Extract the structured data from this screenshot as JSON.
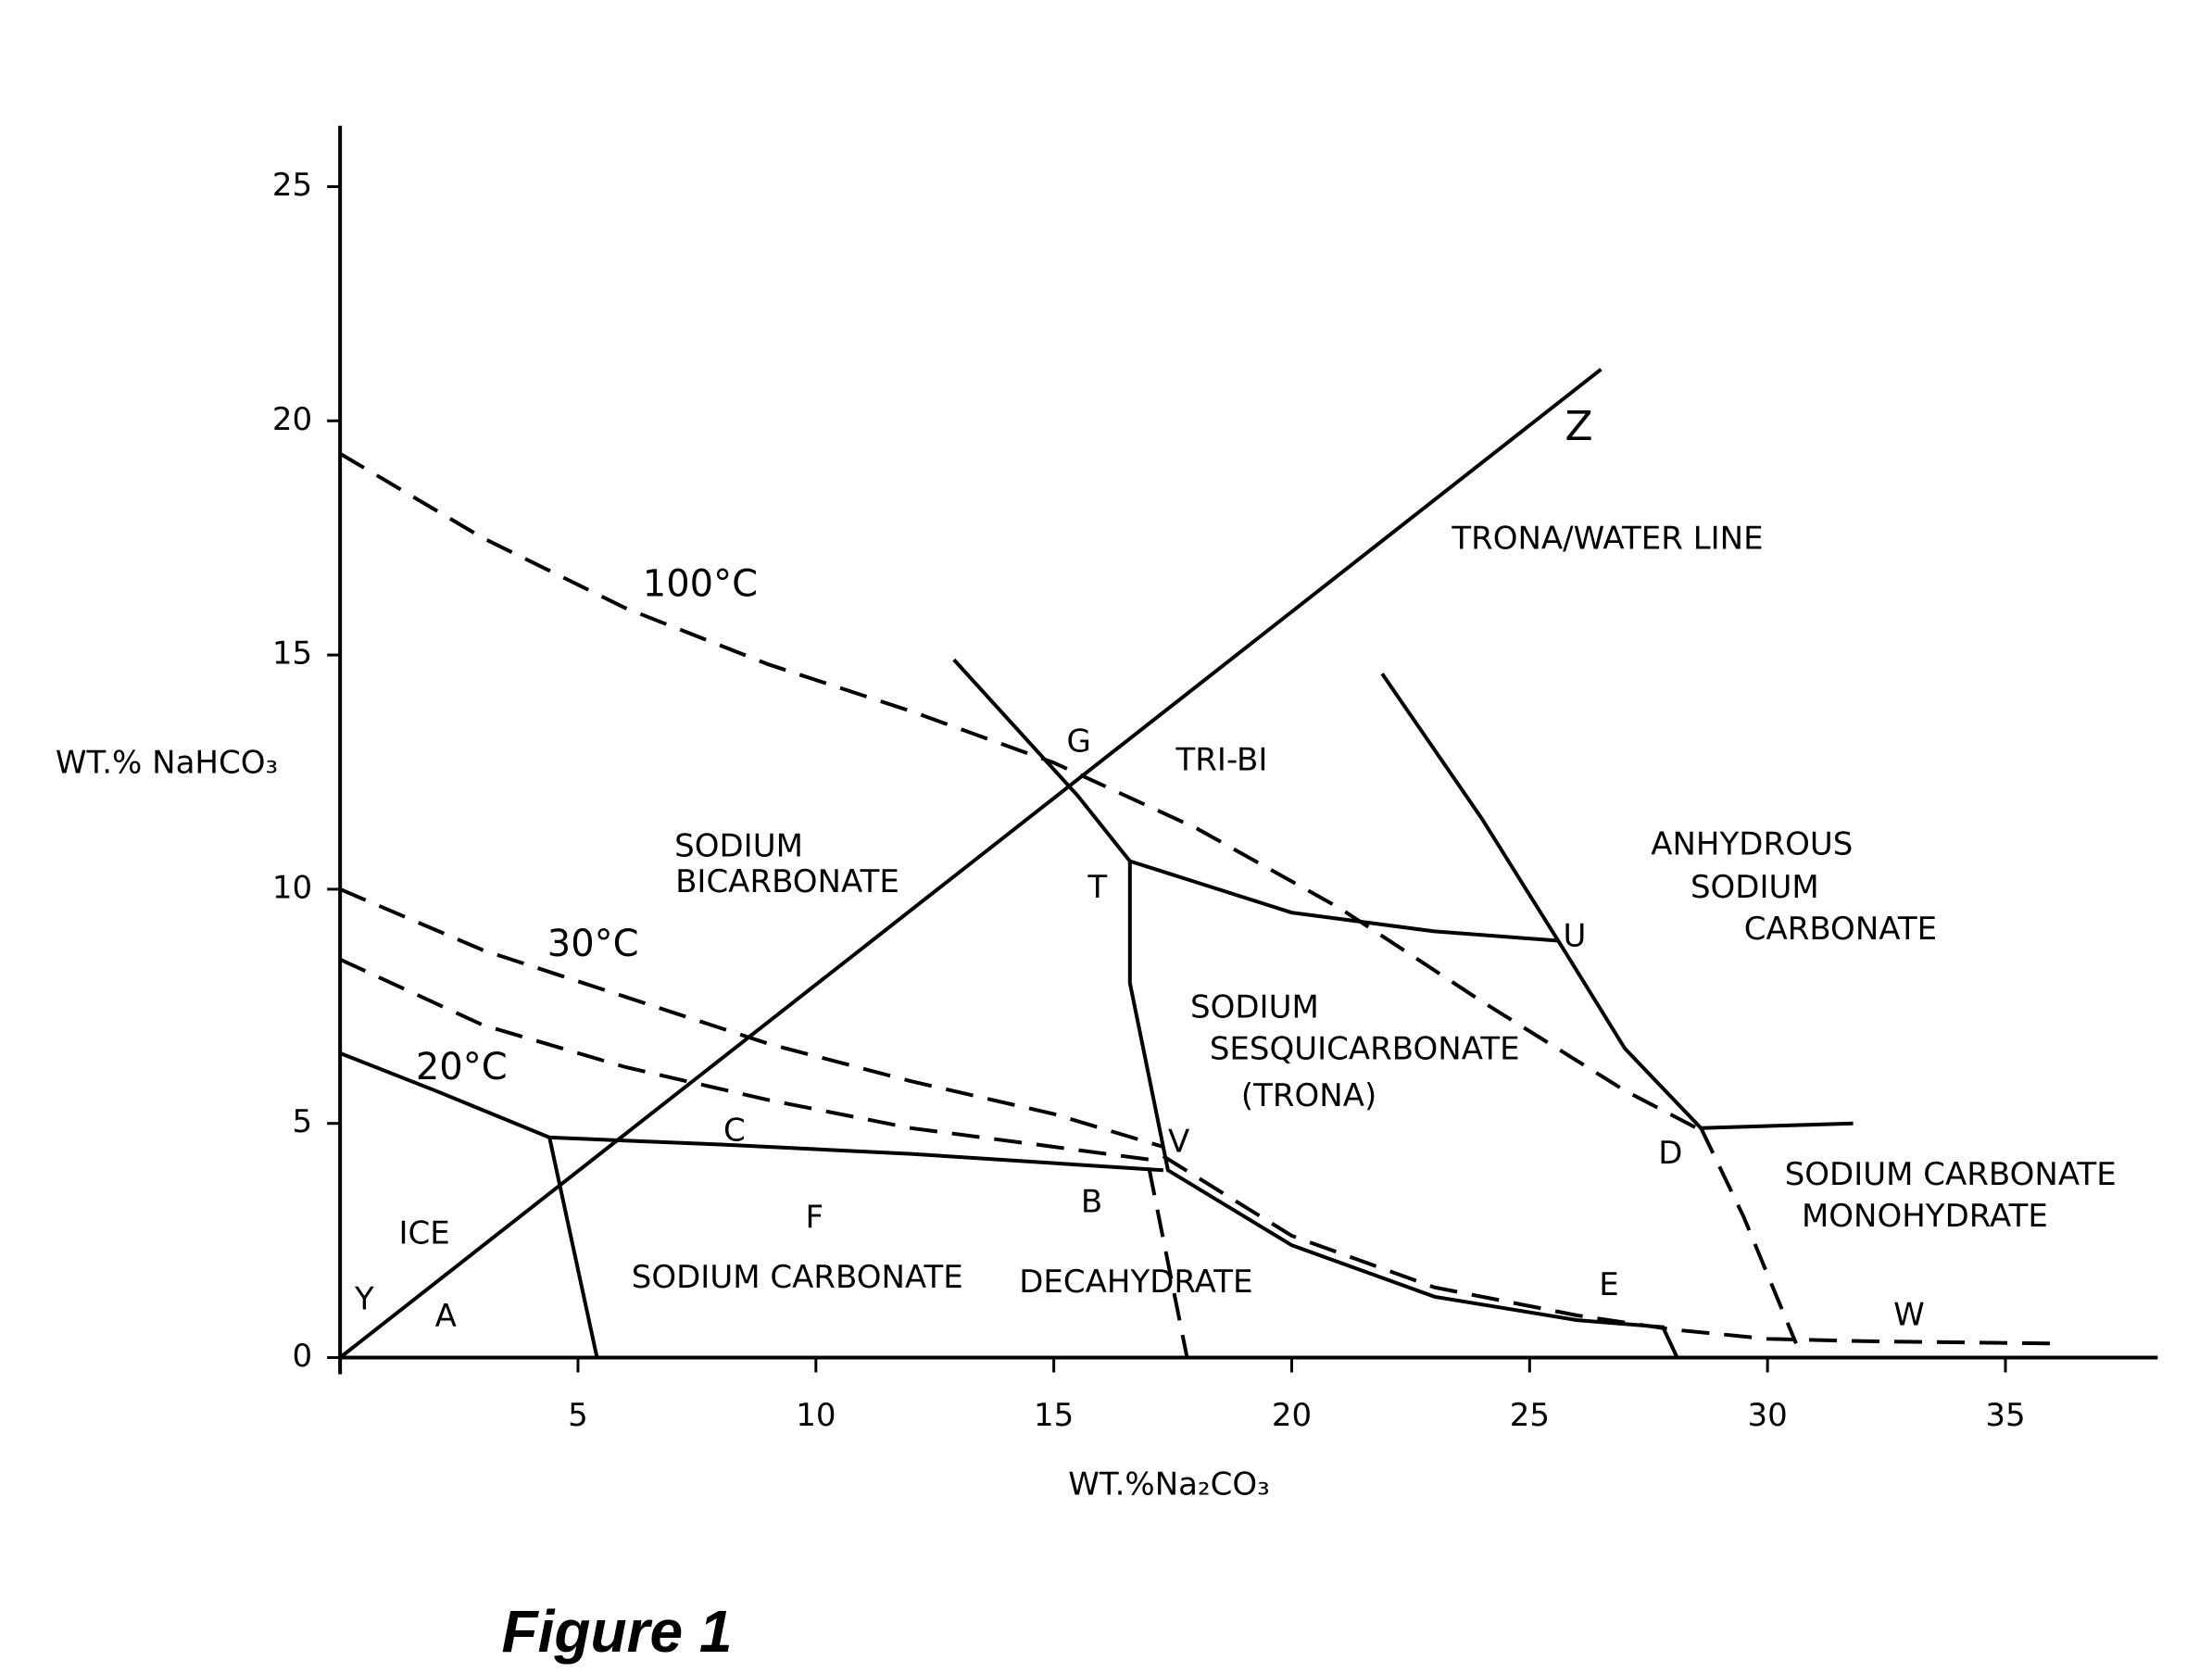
{
  "chart_data": {
    "type": "line",
    "caption": "Figure 1",
    "xlabel": "WT.%Na₂CO₃",
    "ylabel": "WT.% NaHCO₃",
    "xlim": [
      0,
      38.2
    ],
    "ylim": [
      0,
      26.3
    ],
    "xticks": [
      5,
      10,
      15,
      20,
      25,
      30,
      35
    ],
    "yticks": [
      0,
      5,
      10,
      15,
      20,
      25
    ],
    "grid": false,
    "series": [
      {
        "name": "TRONA/WATER LINE",
        "color": "#000000",
        "dashed": false,
        "x": [
          0,
          26.5
        ],
        "values": [
          0,
          21.1
        ]
      },
      {
        "name": "100°C",
        "color": "#000000",
        "dashed": true,
        "x": [
          0,
          3,
          6,
          9,
          12,
          15,
          18,
          21,
          24,
          27,
          28.7
        ],
        "values": [
          19.3,
          17.5,
          16,
          14.8,
          13.8,
          12.7,
          11.3,
          9.6,
          7.6,
          5.7,
          4.8
        ]
      },
      {
        "name": "30°C",
        "color": "#000000",
        "dashed": true,
        "x": [
          0,
          3,
          6,
          9,
          12,
          15,
          17.3
        ],
        "values": [
          10,
          8.7,
          7.7,
          6.7,
          5.9,
          5.2,
          4.5
        ]
      },
      {
        "name": "20°C",
        "color": "#000000",
        "dashed": true,
        "x": [
          0,
          3,
          6,
          9,
          12,
          15,
          17.2
        ],
        "values": [
          8.5,
          7.1,
          6.2,
          5.5,
          4.9,
          4.5,
          4.2
        ]
      },
      {
        "color": "#000000",
        "dashed": false,
        "x": [
          0,
          2,
          4.4,
          8,
          12,
          17.3
        ],
        "values": [
          6.5,
          5.7,
          4.7,
          4.55,
          4.35,
          4.0
        ]
      },
      {
        "color": "#000000",
        "dashed": false,
        "x": [
          4.4,
          5.4
        ],
        "values": [
          4.7,
          0
        ]
      },
      {
        "color": "#000000",
        "dashed": true,
        "x": [
          17.0,
          17.8
        ],
        "values": [
          4.05,
          0
        ]
      },
      {
        "color": "#000000",
        "dashed": false,
        "x": [
          16.6,
          16.6,
          17.0,
          17.4,
          20,
          23,
          26,
          27.8,
          28.1
        ],
        "values": [
          10.6,
          8,
          6,
          4.0,
          2.4,
          1.3,
          0.8,
          0.65,
          0
        ]
      },
      {
        "color": "#000000",
        "dashed": true,
        "x": [
          17.3,
          20,
          23,
          26,
          28,
          30,
          32,
          36
        ],
        "values": [
          4.3,
          2.6,
          1.5,
          0.9,
          0.6,
          0.4,
          0.35,
          0.3
        ]
      },
      {
        "color": "#000000",
        "dashed": false,
        "x": [
          12.9,
          15.5,
          16.6
        ],
        "values": [
          14.9,
          12,
          10.6
        ]
      },
      {
        "color": "#000000",
        "dashed": false,
        "x": [
          16.6,
          20,
          23,
          25.6
        ],
        "values": [
          10.6,
          9.5,
          9.1,
          8.9
        ]
      },
      {
        "color": "#000000",
        "dashed": false,
        "x": [
          21.9,
          24,
          25.6,
          27,
          28.6
        ],
        "values": [
          14.6,
          11.5,
          8.9,
          6.6,
          4.9
        ]
      },
      {
        "color": "#000000",
        "dashed": false,
        "x": [
          28.6,
          31.8
        ],
        "values": [
          4.9,
          5.0
        ]
      },
      {
        "color": "#000000",
        "dashed": true,
        "x": [
          28.6,
          29.5,
          30.6
        ],
        "values": [
          4.9,
          3.0,
          0.3
        ]
      }
    ],
    "annotations": [
      "Z",
      "G",
      "TRI-BI",
      "SODIUM",
      "BICARBONATE",
      "T",
      "U",
      "ANHYDROUS",
      "SODIUM",
      "CARBONATE",
      "SODIUM",
      "SESQUICARBONATE",
      "(TRONA)",
      "C",
      "V",
      "D",
      "SODIUM CARBONATE",
      "MONOHYDRATE",
      "B",
      "F",
      "ICE",
      "SODIUM CARBONATE",
      "DECAHYDRATE",
      "E",
      "Y",
      "A",
      "W"
    ]
  }
}
